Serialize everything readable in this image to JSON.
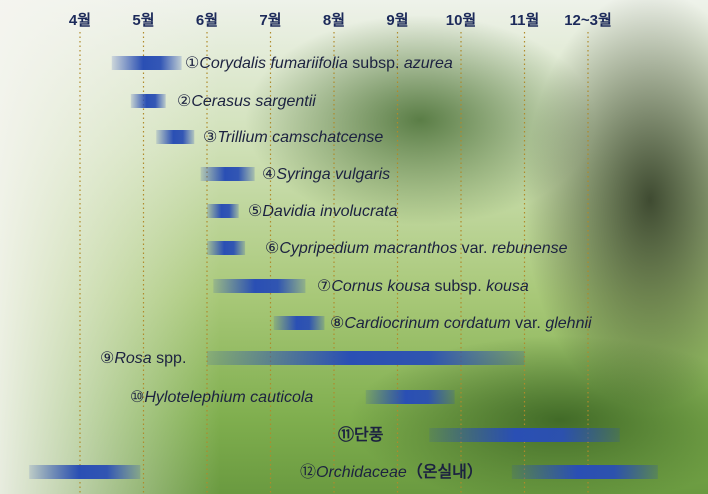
{
  "chart_data": {
    "type": "gantt",
    "xlim": [
      3,
      14
    ],
    "xticks": [
      {
        "value": 4,
        "label": "4월"
      },
      {
        "value": 5,
        "label": "5월"
      },
      {
        "value": 6,
        "label": "6월"
      },
      {
        "value": 7,
        "label": "7월"
      },
      {
        "value": 8,
        "label": "8월"
      },
      {
        "value": 9,
        "label": "9월"
      },
      {
        "value": 10,
        "label": "10월"
      },
      {
        "value": 11,
        "label": "11월"
      },
      {
        "value": 12,
        "label": "12~3월"
      }
    ],
    "grid": true,
    "color": "#2a4fb4",
    "tasks": [
      {
        "label": [
          "①",
          "Corydalis fumariifolia",
          " subsp. ",
          "azurea"
        ],
        "italic": [
          false,
          true,
          false,
          true
        ],
        "spans": [
          [
            4.5,
            5.6
          ]
        ]
      },
      {
        "label": [
          "②",
          "Cerasus sargentii"
        ],
        "italic": [
          false,
          true
        ],
        "spans": [
          [
            4.8,
            5.35
          ]
        ]
      },
      {
        "label": [
          "③",
          "Trillium camschatcense"
        ],
        "italic": [
          false,
          true
        ],
        "spans": [
          [
            5.2,
            5.8
          ]
        ]
      },
      {
        "label": [
          "④",
          "Syringa vulgaris"
        ],
        "italic": [
          false,
          true
        ],
        "spans": [
          [
            5.9,
            6.75
          ]
        ]
      },
      {
        "label": [
          "⑤",
          "Davidia involucrata"
        ],
        "italic": [
          false,
          true
        ],
        "spans": [
          [
            6.0,
            6.5
          ]
        ]
      },
      {
        "label": [
          "⑥",
          "Cypripedium macranthos",
          " var. ",
          "rebunense"
        ],
        "italic": [
          false,
          true,
          false,
          true
        ],
        "spans": [
          [
            6.0,
            6.6
          ]
        ]
      },
      {
        "label": [
          "⑦",
          "Cornus kousa",
          " subsp. ",
          "kousa"
        ],
        "italic": [
          false,
          true,
          false,
          true
        ],
        "spans": [
          [
            6.1,
            7.55
          ]
        ]
      },
      {
        "label": [
          "⑧",
          "Cardiocrinum cordatum",
          " var. ",
          "glehnii"
        ],
        "italic": [
          false,
          true,
          false,
          true
        ],
        "spans": [
          [
            7.05,
            7.85
          ]
        ]
      },
      {
        "label": [
          "⑨",
          "Rosa",
          " spp."
        ],
        "italic": [
          false,
          true,
          false
        ],
        "spans": [
          [
            6.0,
            11.0
          ]
        ]
      },
      {
        "label": [
          "⑩",
          "Hylotelephium cauticola"
        ],
        "italic": [
          false,
          true
        ],
        "spans": [
          [
            8.5,
            9.9
          ]
        ]
      },
      {
        "label": [
          "⑪",
          "단풍"
        ],
        "italic": [
          false,
          false
        ],
        "spans": [
          [
            9.5,
            12.5
          ]
        ]
      },
      {
        "label": [
          "⑫",
          "Orchidaceae",
          "（온실내）"
        ],
        "italic": [
          false,
          true,
          false
        ],
        "spans": [
          [
            3.2,
            4.95
          ],
          [
            10.8,
            13.1
          ]
        ]
      }
    ]
  }
}
